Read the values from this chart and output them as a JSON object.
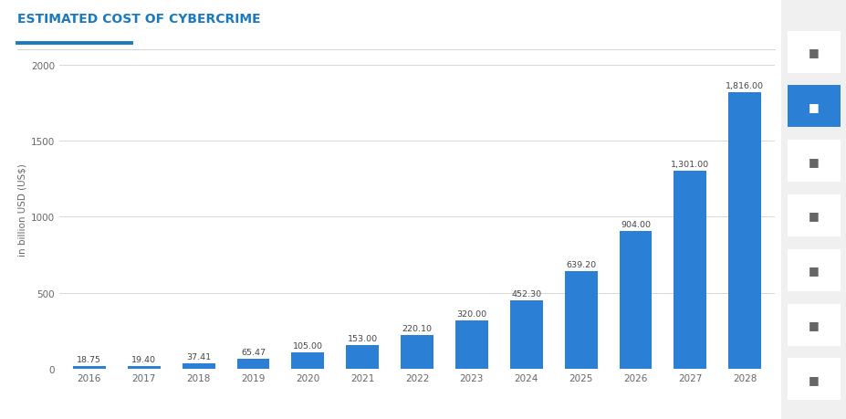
{
  "title": "ESTIMATED COST OF CYBERCRIME",
  "title_color": "#1a7abf",
  "title_fontsize": 10,
  "ylabel": "in billion USD (US$)",
  "ylabel_fontsize": 7.5,
  "years": [
    "2016",
    "2017",
    "2018",
    "2019",
    "2020",
    "2021",
    "2022",
    "2023",
    "2024",
    "2025",
    "2026",
    "2027",
    "2028"
  ],
  "values": [
    18.75,
    19.4,
    37.41,
    65.47,
    105.0,
    153.0,
    220.1,
    320.0,
    452.3,
    639.2,
    904.0,
    1301.0,
    1816.0
  ],
  "bar_color": "#2b7fd4",
  "bar_width": 0.6,
  "ylim": [
    0,
    2100
  ],
  "yticks": [
    0,
    500,
    1000,
    1500,
    2000
  ],
  "label_fontsize": 6.8,
  "label_color": "#444444",
  "background_color": "#ffffff",
  "plot_bg_color": "#ffffff",
  "grid_color": "#d8d8d8",
  "underline_color": "#1a7abf",
  "separator_color": "#cccccc",
  "tick_label_fontsize": 7.5,
  "right_panel_bg": "#f5f5f5",
  "right_panel_active_bg": "#2b7fd4",
  "right_panel_icon_color": "#555555",
  "right_panel_active_icon_color": "#ffffff"
}
